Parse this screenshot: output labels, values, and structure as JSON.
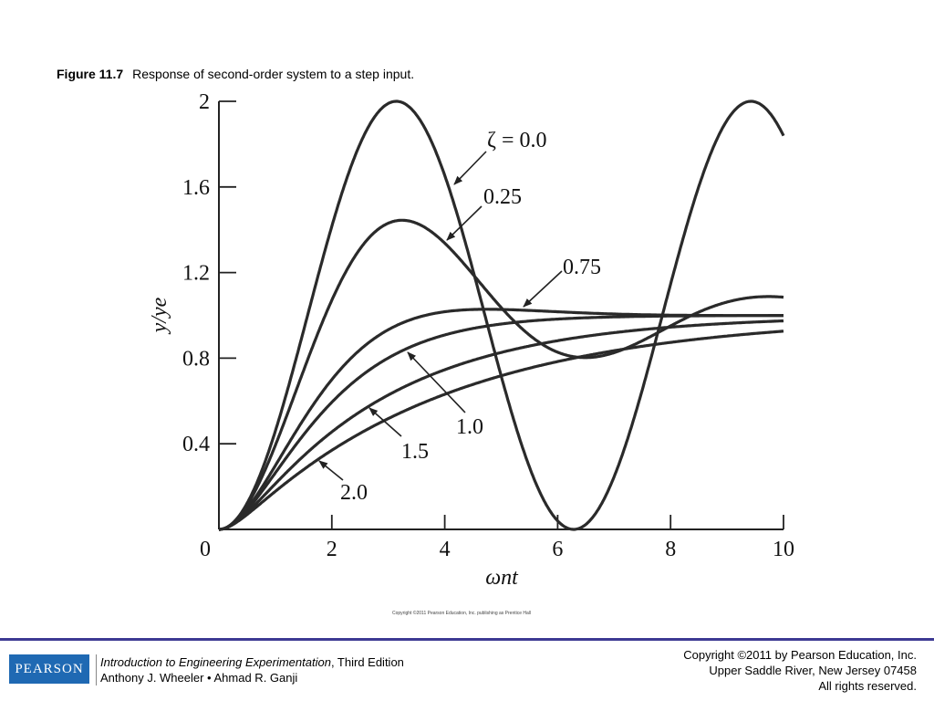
{
  "caption": {
    "number": "Figure 11.7",
    "text": "Response of second-order system to a step input."
  },
  "chart_data": {
    "type": "line",
    "title": "Response of second-order system to a step input.",
    "xlabel": "ωnt",
    "ylabel": "y/ye",
    "xlim": [
      0,
      10
    ],
    "ylim": [
      0,
      2
    ],
    "xticks": [
      "0",
      "2",
      "4",
      "6",
      "8",
      "10"
    ],
    "yticks": [
      "0.4",
      "0.8",
      "1.2",
      "1.6",
      "2"
    ],
    "grid": false,
    "series": [
      {
        "name": "ζ = 0.0",
        "zeta": 0.0,
        "x": [
          0,
          0.5,
          1,
          1.5,
          2,
          2.5,
          3,
          3.14,
          3.5,
          4,
          4.5,
          5,
          5.5,
          6,
          6.28,
          6.5,
          7,
          7.5,
          8,
          8.5,
          9,
          9.42,
          10
        ],
        "y": [
          0,
          0.12,
          0.46,
          0.93,
          1.42,
          1.8,
          1.99,
          2.0,
          1.94,
          1.65,
          1.21,
          0.72,
          0.29,
          0.04,
          0,
          0.02,
          0.25,
          0.65,
          1.15,
          1.6,
          1.91,
          2.0,
          1.84
        ]
      },
      {
        "name": "0.25",
        "zeta": 0.25,
        "x": [
          0,
          0.5,
          1,
          1.5,
          2,
          2.5,
          3,
          3.24,
          3.5,
          4,
          4.5,
          5,
          5.5,
          6,
          6.49,
          7,
          7.5,
          8,
          8.5,
          9,
          9.5,
          10
        ],
        "y": [
          0,
          0.12,
          0.42,
          0.79,
          1.11,
          1.34,
          1.44,
          1.45,
          1.43,
          1.32,
          1.17,
          1.02,
          0.89,
          0.82,
          0.8,
          0.82,
          0.88,
          0.96,
          1.03,
          1.07,
          1.08,
          1.07
        ]
      },
      {
        "name": "0.75",
        "zeta": 0.75,
        "x": [
          0,
          0.5,
          1,
          1.5,
          2,
          2.5,
          3,
          3.5,
          4,
          4.5,
          5,
          6,
          7,
          8,
          9,
          10
        ],
        "y": [
          0,
          0.1,
          0.33,
          0.57,
          0.76,
          0.88,
          0.96,
          1.0,
          1.02,
          1.03,
          1.03,
          1.02,
          1.01,
          1.0,
          1.0,
          1.0
        ]
      },
      {
        "name": "1.0",
        "zeta": 1.0,
        "x": [
          0,
          0.5,
          1,
          1.5,
          2,
          2.5,
          3,
          3.5,
          4,
          5,
          6,
          7,
          8,
          9,
          10
        ],
        "y": [
          0,
          0.09,
          0.26,
          0.44,
          0.59,
          0.71,
          0.8,
          0.86,
          0.91,
          0.96,
          0.98,
          0.99,
          1.0,
          1.0,
          1.0
        ]
      },
      {
        "name": "1.5",
        "zeta": 1.5,
        "x": [
          0,
          0.5,
          1,
          1.5,
          2,
          2.5,
          3,
          3.5,
          4,
          5,
          6,
          7,
          8,
          9,
          10
        ],
        "y": [
          0,
          0.07,
          0.2,
          0.32,
          0.43,
          0.52,
          0.6,
          0.66,
          0.72,
          0.8,
          0.86,
          0.9,
          0.93,
          0.95,
          0.97
        ]
      },
      {
        "name": "2.0",
        "zeta": 2.0,
        "x": [
          0,
          0.5,
          1,
          1.5,
          2,
          2.5,
          3,
          3.5,
          4,
          5,
          6,
          7,
          8,
          9,
          10
        ],
        "y": [
          0,
          0.06,
          0.16,
          0.26,
          0.35,
          0.42,
          0.49,
          0.55,
          0.6,
          0.68,
          0.75,
          0.8,
          0.84,
          0.88,
          0.91
        ]
      }
    ]
  },
  "figure_copyright": "Copyright ©2011 Pearson Education, Inc. publishing as Prentice Hall",
  "footer": {
    "logo_text": "PEARSON",
    "book_title": "Introduction to Engineering Experimentation",
    "edition": ", Third Edition",
    "authors": "Anthony J. Wheeler • Ahmad R. Ganji",
    "copyright_line1": "Copyright ©2011 by Pearson Education, Inc.",
    "copyright_line2": "Upper Saddle River, New Jersey 07458",
    "copyright_line3": "All rights reserved."
  },
  "colors": {
    "footer_rule": "#3d3a93",
    "logo_bg": "#1f69b3",
    "curve": "#2a2a2a"
  }
}
